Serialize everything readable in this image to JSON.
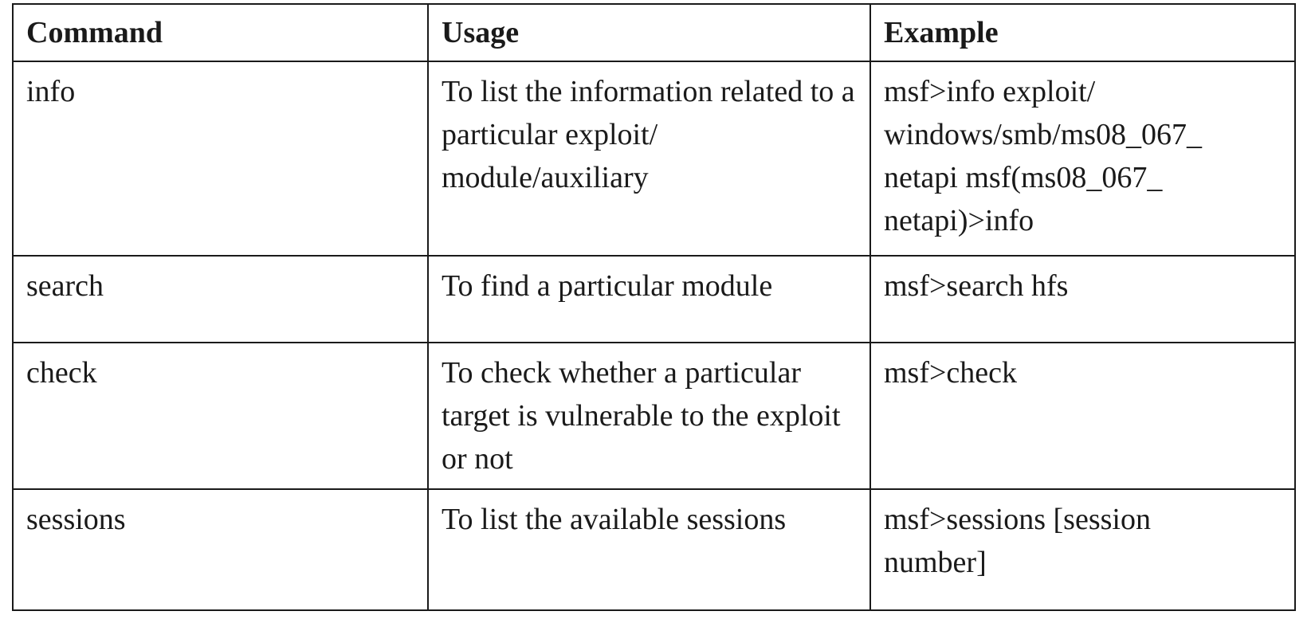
{
  "table": {
    "headers": [
      "Command",
      "Usage",
      "Example"
    ],
    "rows": [
      {
        "command": "info",
        "usage": "To list the information related to a particular exploit/ module/auxiliary",
        "example_lines": [
          "msf>info exploit/",
          "windows/smb/ms08_067_",
          "netapi msf(ms08_067_",
          "netapi)>info"
        ]
      },
      {
        "command": "search",
        "usage": "To find a particular module",
        "example_lines": [
          "msf>search hfs"
        ]
      },
      {
        "command": "check",
        "usage": "To check whether a particular target is vulnerable to the exploit or not",
        "example_lines": [
          "msf>check"
        ]
      },
      {
        "command": "sessions",
        "usage": "To list the available sessions",
        "example_lines": [
          "msf>sessions [session",
          "number]"
        ]
      }
    ]
  }
}
